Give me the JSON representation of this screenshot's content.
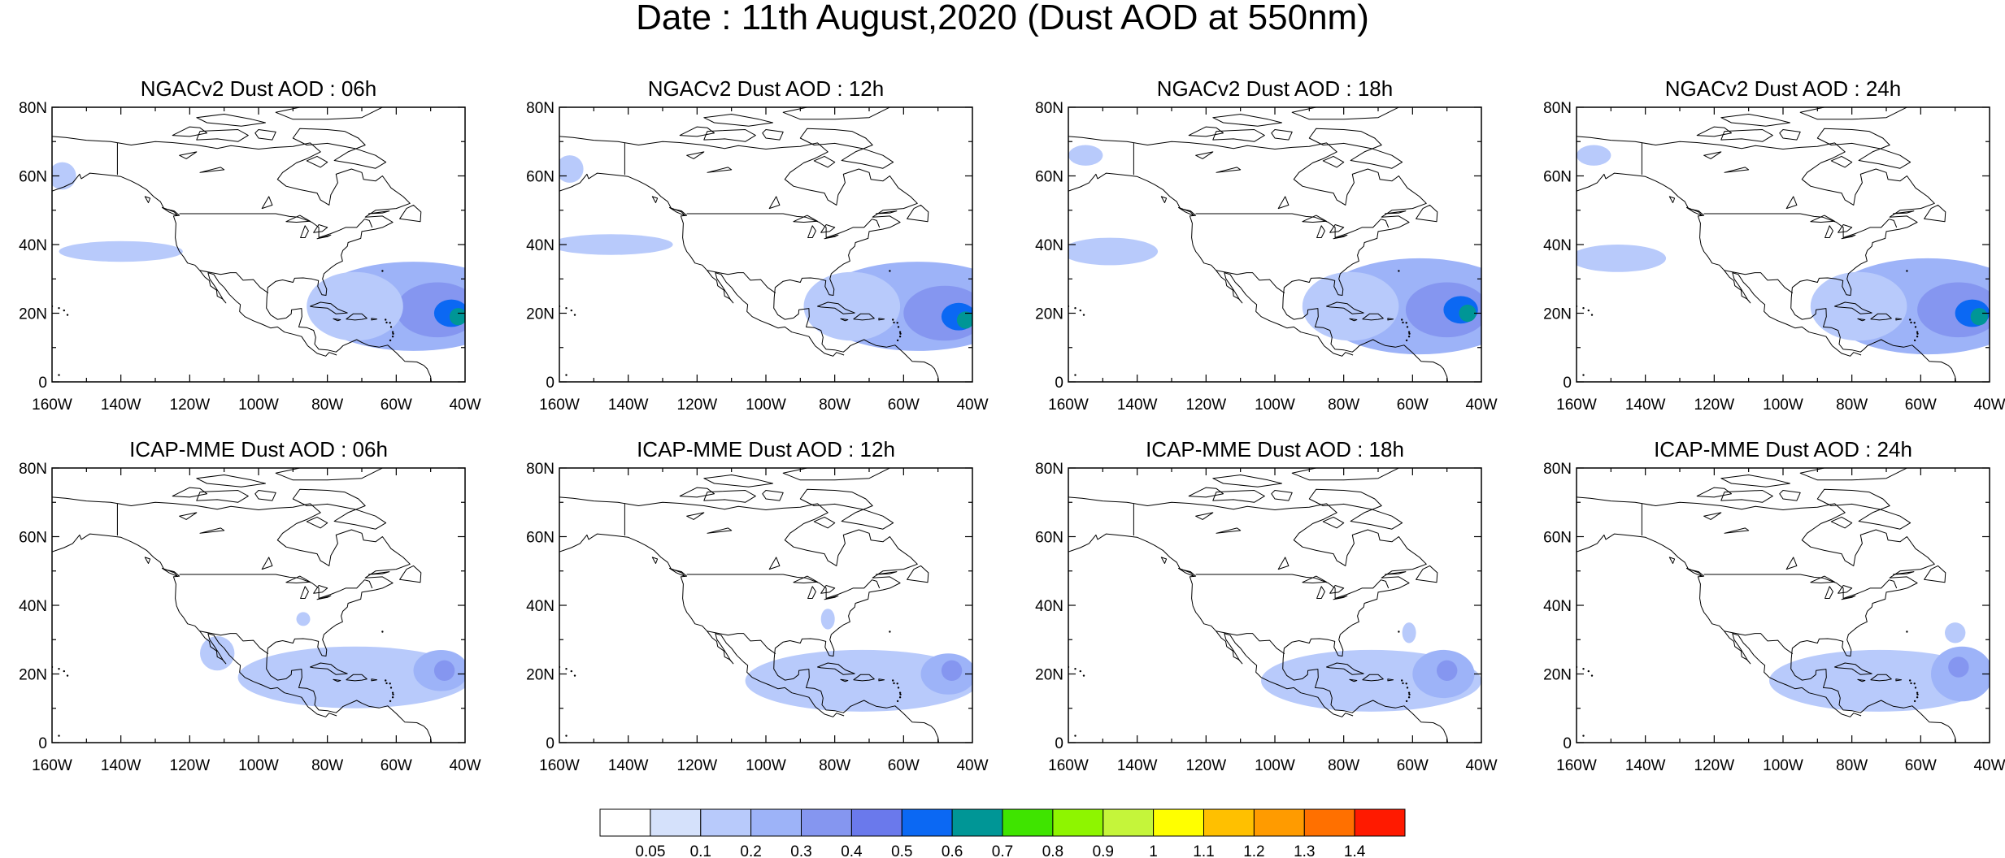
{
  "figure": {
    "title": "Date : 11th August,2020 (Dust AOD at 550nm)"
  },
  "axes": {
    "lat_labels": [
      "80N",
      "60N",
      "40N",
      "20N",
      "0"
    ],
    "lat_values": [
      80,
      60,
      40,
      20,
      0
    ],
    "lon_labels": [
      "160W",
      "140W",
      "120W",
      "100W",
      "80W",
      "60W",
      "40W"
    ],
    "lon_values": [
      -160,
      -140,
      -120,
      -100,
      -80,
      -60,
      -40
    ],
    "lon_range": [
      -160,
      -40
    ],
    "lat_range": [
      0,
      80
    ]
  },
  "panels": [
    {
      "title": "NGACv2 Dust AOD : 06h",
      "model": "NGACv2",
      "hour": "06h",
      "plumes": [
        {
          "lon": -55,
          "lat": 22,
          "rlon": 30,
          "rlat": 13,
          "aod": 0.2
        },
        {
          "lon": -48,
          "lat": 21,
          "rlon": 12,
          "rlat": 8,
          "aod": 0.3
        },
        {
          "lon": -44,
          "lat": 20,
          "rlon": 5,
          "rlat": 4,
          "aod": 0.5
        },
        {
          "lon": -42,
          "lat": 19,
          "rlon": 2.5,
          "rlat": 2.5,
          "aod": 0.6
        },
        {
          "lon": -72,
          "lat": 22,
          "rlon": 14,
          "rlat": 10,
          "aod": 0.1
        },
        {
          "lon": -140,
          "lat": 38,
          "rlon": 18,
          "rlat": 3,
          "aod": 0.1
        },
        {
          "lon": -157,
          "lat": 60,
          "rlon": 4,
          "rlat": 4,
          "aod": 0.1
        }
      ]
    },
    {
      "title": "NGACv2 Dust AOD : 12h",
      "model": "NGACv2",
      "hour": "12h",
      "plumes": [
        {
          "lon": -56,
          "lat": 22,
          "rlon": 30,
          "rlat": 13,
          "aod": 0.2
        },
        {
          "lon": -48,
          "lat": 20,
          "rlon": 12,
          "rlat": 8,
          "aod": 0.3
        },
        {
          "lon": -44,
          "lat": 19,
          "rlon": 5,
          "rlat": 4,
          "aod": 0.5
        },
        {
          "lon": -42,
          "lat": 18,
          "rlon": 2.5,
          "rlat": 2.5,
          "aod": 0.6
        },
        {
          "lon": -75,
          "lat": 22,
          "rlon": 14,
          "rlat": 10,
          "aod": 0.1
        },
        {
          "lon": -145,
          "lat": 40,
          "rlon": 18,
          "rlat": 3,
          "aod": 0.1
        },
        {
          "lon": -157,
          "lat": 62,
          "rlon": 4,
          "rlat": 4,
          "aod": 0.1
        }
      ]
    },
    {
      "title": "NGACv2 Dust AOD : 18h",
      "model": "NGACv2",
      "hour": "18h",
      "plumes": [
        {
          "lon": -58,
          "lat": 22,
          "rlon": 30,
          "rlat": 14,
          "aod": 0.2
        },
        {
          "lon": -50,
          "lat": 21,
          "rlon": 12,
          "rlat": 8,
          "aod": 0.3
        },
        {
          "lon": -46,
          "lat": 21,
          "rlon": 5,
          "rlat": 4,
          "aod": 0.5
        },
        {
          "lon": -44,
          "lat": 20,
          "rlon": 2.5,
          "rlat": 2.5,
          "aod": 0.6
        },
        {
          "lon": -78,
          "lat": 22,
          "rlon": 14,
          "rlat": 10,
          "aod": 0.1
        },
        {
          "lon": -148,
          "lat": 38,
          "rlon": 14,
          "rlat": 4,
          "aod": 0.1
        },
        {
          "lon": -155,
          "lat": 66,
          "rlon": 5,
          "rlat": 3,
          "aod": 0.1
        }
      ]
    },
    {
      "title": "NGACv2 Dust AOD : 24h",
      "model": "NGACv2",
      "hour": "24h",
      "plumes": [
        {
          "lon": -58,
          "lat": 22,
          "rlon": 30,
          "rlat": 14,
          "aod": 0.2
        },
        {
          "lon": -49,
          "lat": 21,
          "rlon": 12,
          "rlat": 8,
          "aod": 0.3
        },
        {
          "lon": -45,
          "lat": 20,
          "rlon": 5,
          "rlat": 4,
          "aod": 0.5
        },
        {
          "lon": -43,
          "lat": 19,
          "rlon": 2.5,
          "rlat": 2.5,
          "aod": 0.6
        },
        {
          "lon": -78,
          "lat": 22,
          "rlon": 14,
          "rlat": 10,
          "aod": 0.1
        },
        {
          "lon": -148,
          "lat": 36,
          "rlon": 14,
          "rlat": 4,
          "aod": 0.1
        },
        {
          "lon": -155,
          "lat": 66,
          "rlon": 5,
          "rlat": 3,
          "aod": 0.1
        }
      ]
    },
    {
      "title": "ICAP-MME Dust AOD : 06h",
      "model": "ICAP-MME",
      "hour": "06h",
      "plumes": [
        {
          "lon": -72,
          "lat": 19,
          "rlon": 34,
          "rlat": 9,
          "aod": 0.1
        },
        {
          "lon": -47,
          "lat": 21,
          "rlon": 8,
          "rlat": 6,
          "aod": 0.2
        },
        {
          "lon": -46,
          "lat": 21,
          "rlon": 3,
          "rlat": 3,
          "aod": 0.3
        },
        {
          "lon": -112,
          "lat": 26,
          "rlon": 5,
          "rlat": 5,
          "aod": 0.1
        },
        {
          "lon": -87,
          "lat": 36,
          "rlon": 2,
          "rlat": 2,
          "aod": 0.1
        }
      ]
    },
    {
      "title": "ICAP-MME Dust AOD : 12h",
      "model": "ICAP-MME",
      "hour": "12h",
      "plumes": [
        {
          "lon": -72,
          "lat": 18,
          "rlon": 34,
          "rlat": 9,
          "aod": 0.1
        },
        {
          "lon": -47,
          "lat": 20,
          "rlon": 8,
          "rlat": 6,
          "aod": 0.2
        },
        {
          "lon": -46,
          "lat": 21,
          "rlon": 3,
          "rlat": 3,
          "aod": 0.3
        },
        {
          "lon": -82,
          "lat": 36,
          "rlon": 2,
          "rlat": 3,
          "aod": 0.1
        }
      ]
    },
    {
      "title": "ICAP-MME Dust AOD : 18h",
      "model": "ICAP-MME",
      "hour": "18h",
      "plumes": [
        {
          "lon": -72,
          "lat": 18,
          "rlon": 32,
          "rlat": 9,
          "aod": 0.1
        },
        {
          "lon": -51,
          "lat": 20,
          "rlon": 9,
          "rlat": 7,
          "aod": 0.2
        },
        {
          "lon": -50,
          "lat": 21,
          "rlon": 3,
          "rlat": 3,
          "aod": 0.3
        },
        {
          "lon": -61,
          "lat": 32,
          "rlon": 2,
          "rlat": 3,
          "aod": 0.1
        }
      ]
    },
    {
      "title": "ICAP-MME Dust AOD : 24h",
      "model": "ICAP-MME",
      "hour": "24h",
      "plumes": [
        {
          "lon": -72,
          "lat": 18,
          "rlon": 32,
          "rlat": 9,
          "aod": 0.1
        },
        {
          "lon": -48,
          "lat": 20,
          "rlon": 9,
          "rlat": 8,
          "aod": 0.2
        },
        {
          "lon": -49,
          "lat": 22,
          "rlon": 3,
          "rlat": 3,
          "aod": 0.3
        },
        {
          "lon": -50,
          "lat": 32,
          "rlon": 3,
          "rlat": 3,
          "aod": 0.1
        }
      ]
    }
  ],
  "colorbar": {
    "labels": [
      "0.05",
      "0.1",
      "0.2",
      "0.3",
      "0.4",
      "0.5",
      "0.6",
      "0.7",
      "0.8",
      "0.9",
      "1",
      "1.1",
      "1.2",
      "1.3",
      "1.4"
    ],
    "levels": [
      0.05,
      0.1,
      0.2,
      0.3,
      0.4,
      0.5,
      0.6,
      0.7,
      0.8,
      0.9,
      1,
      1.1,
      1.2,
      1.3,
      1.4
    ],
    "colors": [
      "#ffffff",
      "#d5e1fb",
      "#b8cafb",
      "#9db3f8",
      "#8596f0",
      "#6a79ec",
      "#0b68f3",
      "#009696",
      "#3fe400",
      "#8ef500",
      "#c5f53a",
      "#ffff00",
      "#ffc000",
      "#ff9b00",
      "#ff7000",
      "#ff1a00"
    ]
  }
}
